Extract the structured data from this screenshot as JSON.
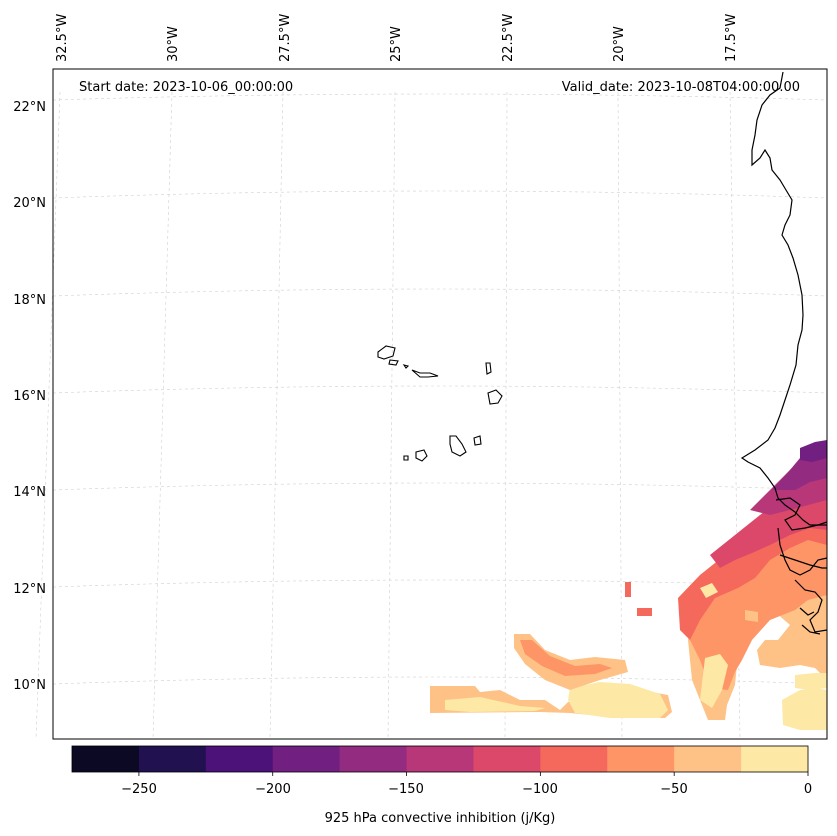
{
  "header": {
    "start_date": "Start date: 2023-10-06_00:00:00",
    "valid_date": "Valid_date: 2023-10-08T04:00:00.00"
  },
  "axes": {
    "lon_labels": [
      "32.5°W",
      "30°W",
      "27.5°W",
      "25°W",
      "22.5°W",
      "20°W",
      "17.5°W"
    ],
    "lat_labels": [
      "22°N",
      "20°N",
      "18°N",
      "16°N",
      "14°N",
      "12°N",
      "10°N"
    ]
  },
  "colorbar": {
    "label": "925 hPa convective inhibition (j/Kg)",
    "ticks": [
      "−250",
      "−200",
      "−150",
      "−100",
      "−50",
      "0"
    ],
    "colors": [
      "#0b0924",
      "#221150",
      "#4d117a",
      "#711f81",
      "#932b80",
      "#b73779",
      "#dc4869",
      "#f4695c",
      "#fd9567",
      "#fec287",
      "#fde8a6"
    ]
  },
  "chart_data": {
    "type": "heatmap",
    "variable": "925 hPa convective inhibition",
    "units": "j/Kg",
    "levels": [
      -275,
      -250,
      -225,
      -200,
      -175,
      -150,
      -125,
      -100,
      -75,
      -50,
      -25,
      0
    ],
    "colorbar_ticks": [
      -250,
      -200,
      -150,
      -100,
      -50,
      0
    ],
    "lon_ticks": [
      -32.5,
      -30,
      -27.5,
      -25,
      -22.5,
      -20,
      -17.5
    ],
    "lat_ticks": [
      22,
      20,
      18,
      16,
      14,
      12,
      10
    ],
    "lon_range": [
      -33,
      -16
    ],
    "lat_range": [
      9,
      22.7
    ],
    "grid": true
  }
}
